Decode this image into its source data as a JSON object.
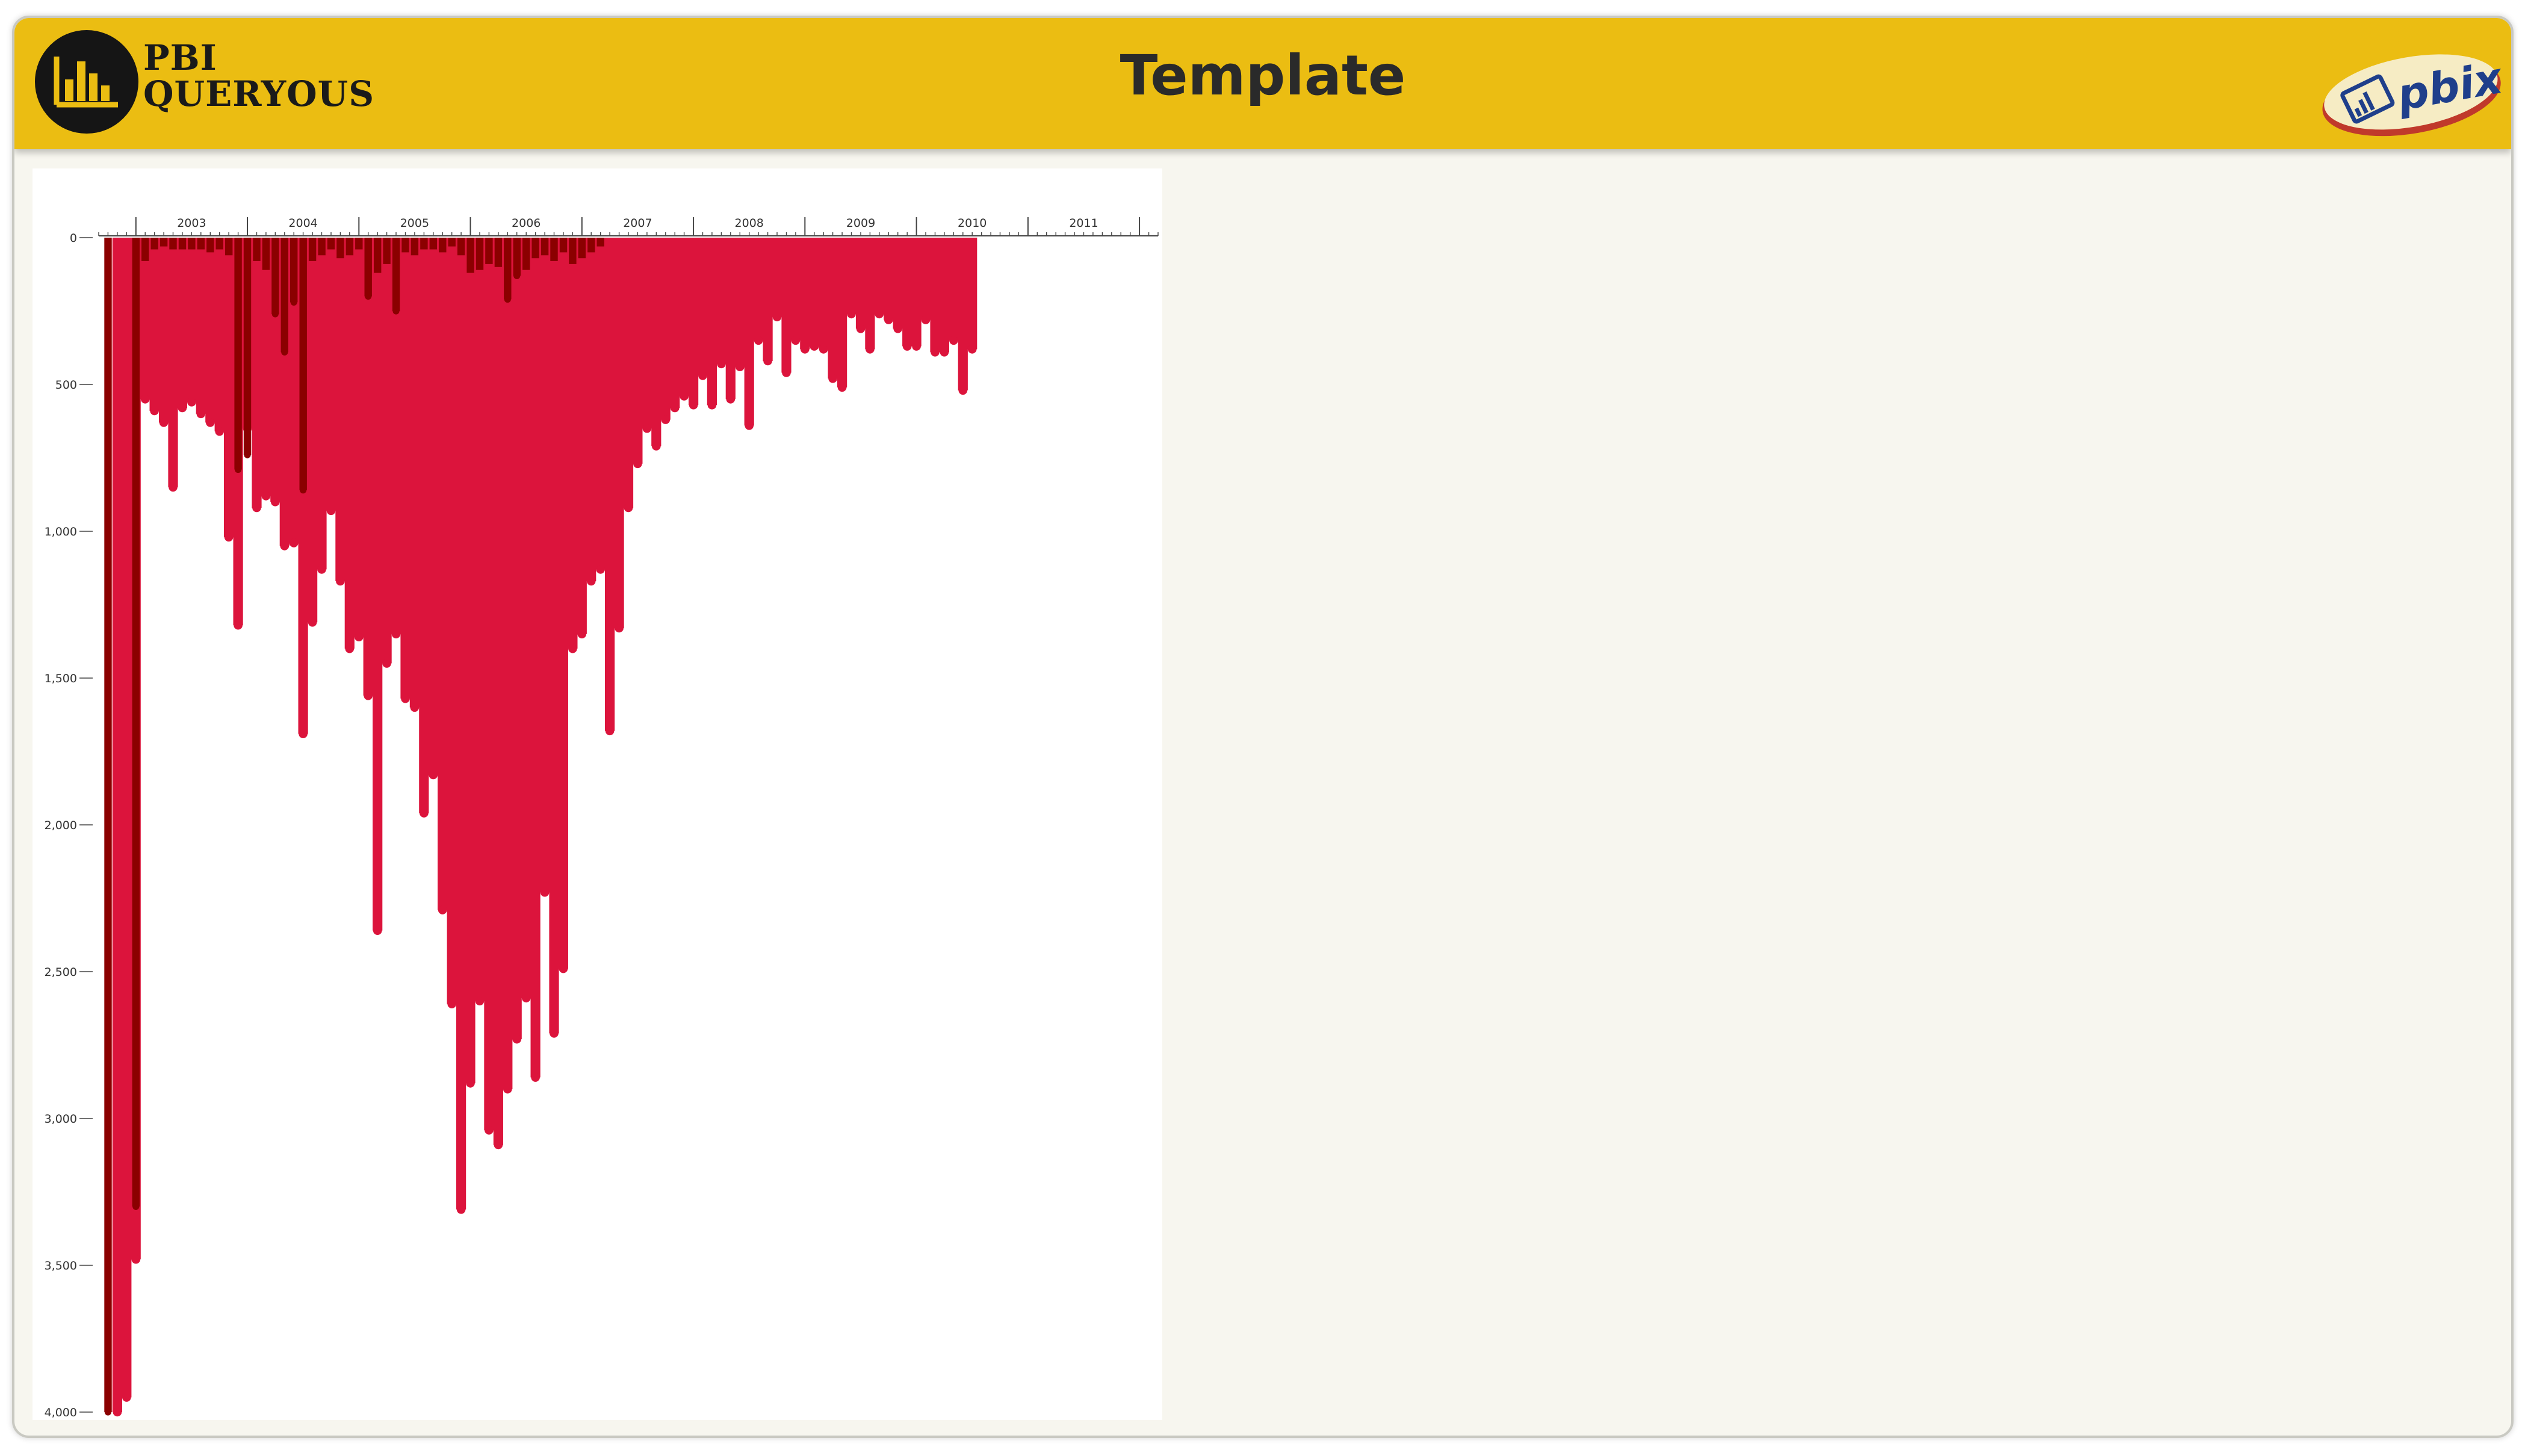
{
  "header": {
    "title": "Template",
    "logo_line1": "PBI",
    "logo_line2": "QUERYOUS",
    "badge_text": "pbix",
    "color": "#EBBD12"
  },
  "chart_data": {
    "type": "bar",
    "orientation": "hanging-columns",
    "x_axis": {
      "position": "top",
      "range": [
        "2002-09",
        "2012-03"
      ],
      "tick_labels": [
        "2003",
        "2004",
        "2005",
        "2006",
        "2007",
        "2008",
        "2009",
        "2010",
        "2011"
      ]
    },
    "y_axis": {
      "range": [
        0,
        4000
      ],
      "inverted": true,
      "ticks": [
        0,
        500,
        1000,
        1500,
        2000,
        2500,
        3000,
        3500,
        4000
      ],
      "tick_labels": [
        "0",
        "500",
        "1,000",
        "1,500",
        "2,000",
        "2,500",
        "3,000",
        "3,500",
        "4,000"
      ]
    },
    "series": [
      {
        "color": "#DC143C",
        "points": [
          [
            "2002-11",
            4000
          ],
          [
            "2002-12",
            3950
          ],
          [
            "2003-01",
            3480
          ],
          [
            "2003-02",
            550
          ],
          [
            "2003-03",
            590
          ],
          [
            "2003-04",
            630
          ],
          [
            "2003-05",
            850
          ],
          [
            "2003-06",
            580
          ],
          [
            "2003-07",
            560
          ],
          [
            "2003-08",
            600
          ],
          [
            "2003-09",
            630
          ],
          [
            "2003-10",
            660
          ],
          [
            "2003-11",
            1020
          ],
          [
            "2003-12",
            1320
          ],
          [
            "2004-01",
            650
          ],
          [
            "2004-02",
            920
          ],
          [
            "2004-03",
            880
          ],
          [
            "2004-04",
            900
          ],
          [
            "2004-05",
            1050
          ],
          [
            "2004-06",
            1040
          ],
          [
            "2004-07",
            1690
          ],
          [
            "2004-08",
            1310
          ],
          [
            "2004-09",
            1130
          ],
          [
            "2004-10",
            930
          ],
          [
            "2004-11",
            1170
          ],
          [
            "2004-12",
            1400
          ],
          [
            "2005-01",
            1360
          ],
          [
            "2005-02",
            1560
          ],
          [
            "2005-03",
            2360
          ],
          [
            "2005-04",
            1450
          ],
          [
            "2005-05",
            1350
          ],
          [
            "2005-06",
            1570
          ],
          [
            "2005-07",
            1600
          ],
          [
            "2005-08",
            1960
          ],
          [
            "2005-09",
            1830
          ],
          [
            "2005-10",
            2290
          ],
          [
            "2005-11",
            2610
          ],
          [
            "2005-12",
            3310
          ],
          [
            "2006-01",
            2880
          ],
          [
            "2006-02",
            2600
          ],
          [
            "2006-03",
            3040
          ],
          [
            "2006-04",
            3090
          ],
          [
            "2006-05",
            2900
          ],
          [
            "2006-06",
            2730
          ],
          [
            "2006-07",
            2590
          ],
          [
            "2006-08",
            2860
          ],
          [
            "2006-09",
            2230
          ],
          [
            "2006-10",
            2710
          ],
          [
            "2006-11",
            2490
          ],
          [
            "2006-12",
            1400
          ],
          [
            "2007-01",
            1350
          ],
          [
            "2007-02",
            1170
          ],
          [
            "2007-03",
            1130
          ],
          [
            "2007-04",
            1680
          ],
          [
            "2007-05",
            1330
          ],
          [
            "2007-06",
            920
          ],
          [
            "2007-07",
            770
          ],
          [
            "2007-08",
            650
          ],
          [
            "2007-09",
            710
          ],
          [
            "2007-10",
            620
          ],
          [
            "2007-11",
            580
          ],
          [
            "2007-12",
            540
          ],
          [
            "2008-01",
            570
          ],
          [
            "2008-02",
            470
          ],
          [
            "2008-03",
            570
          ],
          [
            "2008-04",
            430
          ],
          [
            "2008-05",
            550
          ],
          [
            "2008-06",
            440
          ],
          [
            "2008-07",
            640
          ],
          [
            "2008-08",
            350
          ],
          [
            "2008-09",
            420
          ],
          [
            "2008-10",
            270
          ],
          [
            "2008-11",
            460
          ],
          [
            "2008-12",
            350
          ],
          [
            "2009-01",
            380
          ],
          [
            "2009-02",
            370
          ],
          [
            "2009-03",
            380
          ],
          [
            "2009-04",
            480
          ],
          [
            "2009-05",
            510
          ],
          [
            "2009-06",
            260
          ],
          [
            "2009-07",
            310
          ],
          [
            "2009-08",
            380
          ],
          [
            "2009-09",
            260
          ],
          [
            "2009-10",
            280
          ],
          [
            "2009-11",
            310
          ],
          [
            "2009-12",
            370
          ],
          [
            "2010-01",
            370
          ],
          [
            "2010-02",
            280
          ],
          [
            "2010-03",
            390
          ],
          [
            "2010-04",
            390
          ],
          [
            "2010-05",
            350
          ],
          [
            "2010-06",
            520
          ],
          [
            "2010-07",
            380
          ]
        ]
      },
      {
        "color": "#8B0000",
        "points": [
          [
            "2002-10",
            4000
          ],
          [
            "2003-01",
            3300
          ],
          [
            "2003-02",
            80
          ],
          [
            "2003-03",
            40
          ],
          [
            "2003-04",
            30
          ],
          [
            "2003-05",
            40
          ],
          [
            "2003-06",
            40
          ],
          [
            "2003-07",
            40
          ],
          [
            "2003-08",
            40
          ],
          [
            "2003-09",
            50
          ],
          [
            "2003-10",
            40
          ],
          [
            "2003-11",
            60
          ],
          [
            "2003-12",
            790
          ],
          [
            "2004-01",
            740
          ],
          [
            "2004-02",
            80
          ],
          [
            "2004-03",
            110
          ],
          [
            "2004-04",
            260
          ],
          [
            "2004-05",
            390
          ],
          [
            "2004-06",
            220
          ],
          [
            "2004-07",
            860
          ],
          [
            "2004-08",
            80
          ],
          [
            "2004-09",
            60
          ],
          [
            "2004-10",
            40
          ],
          [
            "2004-11",
            70
          ],
          [
            "2004-12",
            60
          ],
          [
            "2005-01",
            40
          ],
          [
            "2005-02",
            200
          ],
          [
            "2005-03",
            120
          ],
          [
            "2005-04",
            90
          ],
          [
            "2005-05",
            250
          ],
          [
            "2005-06",
            50
          ],
          [
            "2005-07",
            60
          ],
          [
            "2005-08",
            40
          ],
          [
            "2005-09",
            40
          ],
          [
            "2005-10",
            50
          ],
          [
            "2005-11",
            30
          ],
          [
            "2005-12",
            60
          ],
          [
            "2006-01",
            120
          ],
          [
            "2006-02",
            110
          ],
          [
            "2006-03",
            90
          ],
          [
            "2006-04",
            100
          ],
          [
            "2006-05",
            210
          ],
          [
            "2006-06",
            130
          ],
          [
            "2006-07",
            110
          ],
          [
            "2006-08",
            70
          ],
          [
            "2006-09",
            60
          ],
          [
            "2006-10",
            80
          ],
          [
            "2006-11",
            50
          ],
          [
            "2006-12",
            90
          ],
          [
            "2007-01",
            70
          ],
          [
            "2007-02",
            50
          ],
          [
            "2007-03",
            30
          ]
        ]
      }
    ]
  },
  "colors": {
    "header_bg": "#EBBD12",
    "page_bg": "#F7F6EF",
    "series_primary": "#DC143C",
    "series_secondary": "#8B0000"
  }
}
